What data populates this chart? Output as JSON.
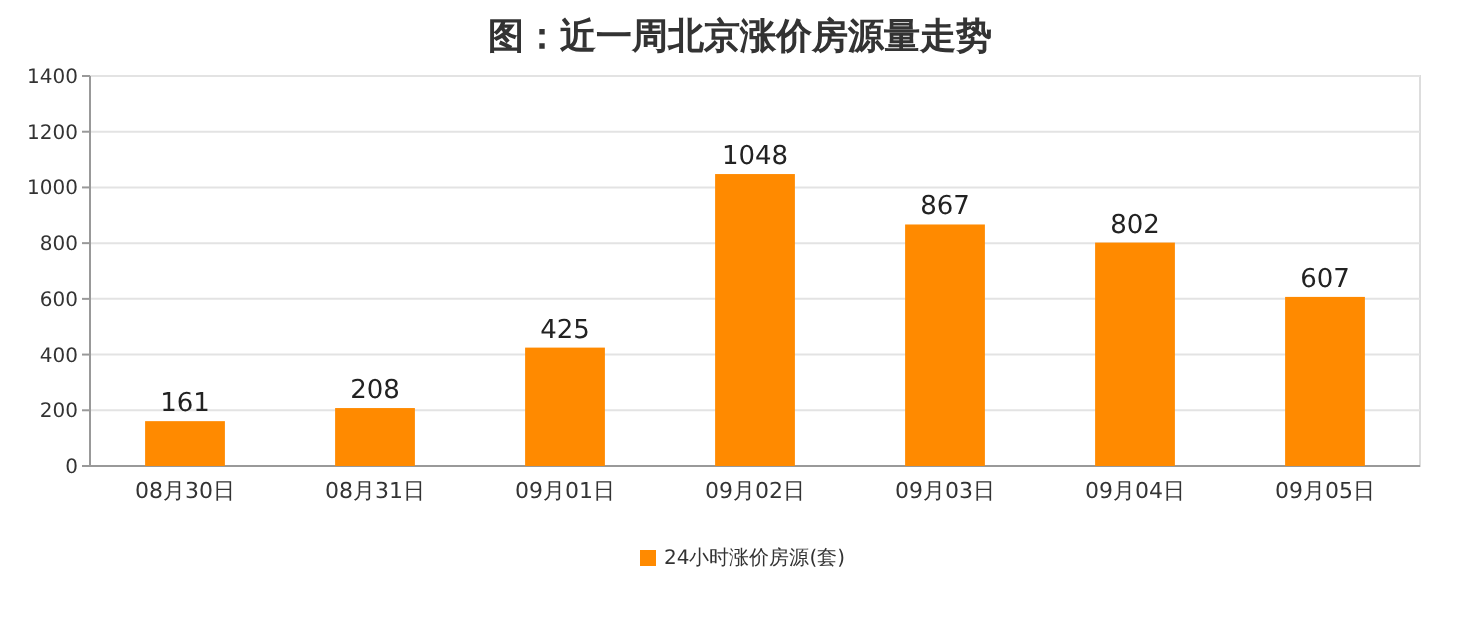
{
  "chart_data": {
    "type": "bar",
    "title": "图：近一周北京涨价房源量走势",
    "categories": [
      "08月30日",
      "08月31日",
      "09月01日",
      "09月02日",
      "09月03日",
      "09月04日",
      "09月05日"
    ],
    "series": [
      {
        "name": "24小时涨价房源(套)",
        "color": "#ff8a00",
        "values": [
          161,
          208,
          425,
          1048,
          867,
          802,
          607
        ]
      }
    ],
    "ylim": [
      0,
      1400
    ],
    "yticks": [
      0,
      200,
      400,
      600,
      800,
      1000,
      1200,
      1400
    ],
    "grid": "y",
    "legend": "bottom",
    "data_labels": true
  }
}
